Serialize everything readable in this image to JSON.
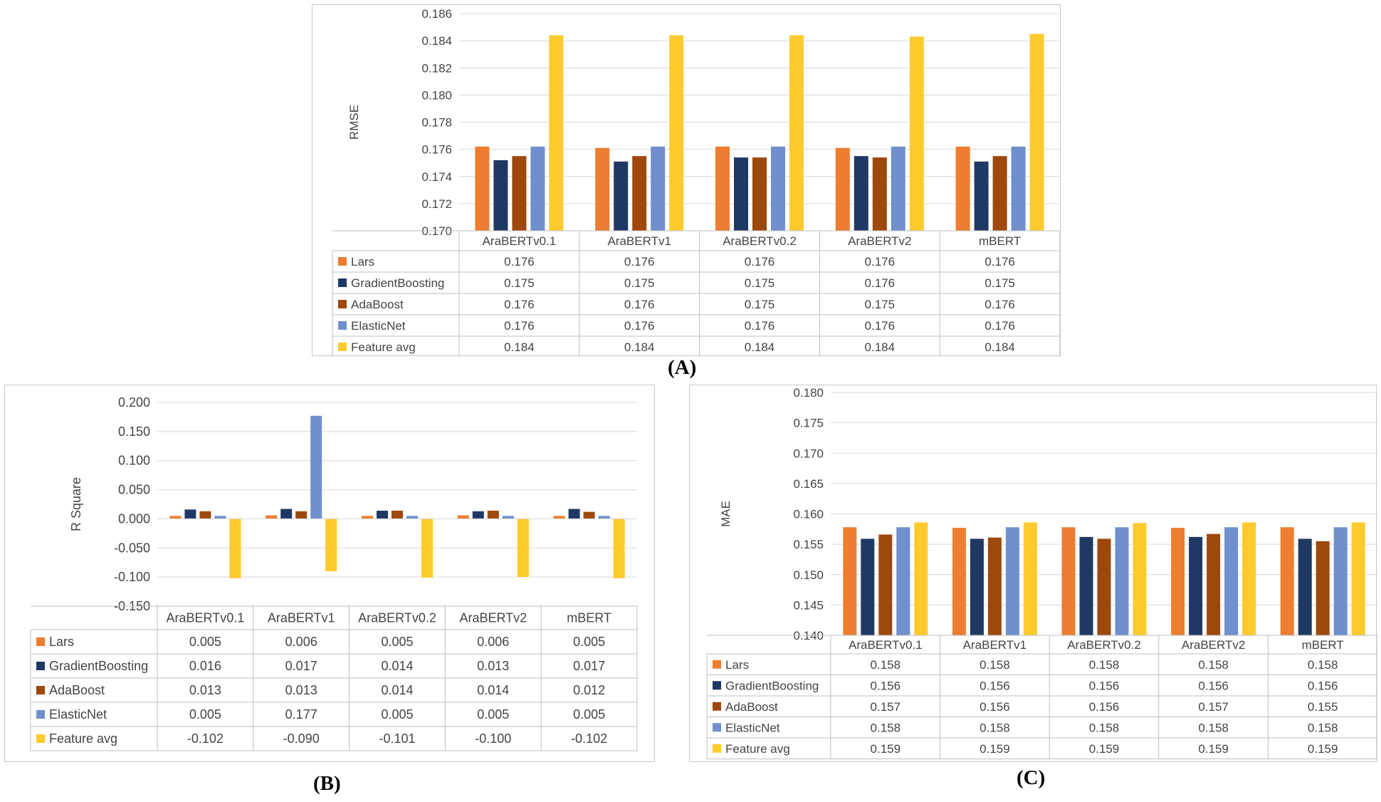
{
  "colors": {
    "Lars": "#ED7D31",
    "GradientBoosting": "#203864",
    "AdaBoost": "#9E480E",
    "ElasticNet": "#6F8FCD",
    "Feature avg": "#FFCA2E"
  },
  "captions": {
    "A": "(A)",
    "B": "(B)",
    "C": "(C)"
  },
  "chart_data": [
    {
      "id": "A",
      "type": "bar",
      "ylabel": "RMSE",
      "ylim": [
        0.17,
        0.186
      ],
      "yticks": [
        "0.186",
        "0.184",
        "0.182",
        "0.180",
        "0.178",
        "0.176",
        "0.174",
        "0.172",
        "0.170"
      ],
      "categories": [
        "AraBERTv0.1",
        "AraBERTv1",
        "AraBERTv0.2",
        "AraBERTv2",
        "mBERT"
      ],
      "series": [
        {
          "name": "Lars",
          "values": [
            0.1762,
            0.1761,
            0.1762,
            0.1761,
            0.1762
          ],
          "labels": [
            "0.176",
            "0.176",
            "0.176",
            "0.176",
            "0.176"
          ]
        },
        {
          "name": "GradientBoosting",
          "values": [
            0.1752,
            0.1751,
            0.1754,
            0.1755,
            0.1751
          ],
          "labels": [
            "0.175",
            "0.175",
            "0.175",
            "0.176",
            "0.175"
          ]
        },
        {
          "name": "AdaBoost",
          "values": [
            0.1755,
            0.1755,
            0.1754,
            0.1754,
            0.1755
          ],
          "labels": [
            "0.176",
            "0.176",
            "0.175",
            "0.175",
            "0.176"
          ]
        },
        {
          "name": "ElasticNet",
          "values": [
            0.1762,
            0.1762,
            0.1762,
            0.1762,
            0.1762
          ],
          "labels": [
            "0.176",
            "0.176",
            "0.176",
            "0.176",
            "0.176"
          ]
        },
        {
          "name": "Feature avg",
          "values": [
            0.1844,
            0.1844,
            0.1844,
            0.1843,
            0.1845
          ],
          "labels": [
            "0.184",
            "0.184",
            "0.184",
            "0.184",
            "0.184"
          ]
        }
      ]
    },
    {
      "id": "B",
      "type": "bar",
      "ylabel": "R Square",
      "ylim": [
        -0.15,
        0.2
      ],
      "yticks": [
        "0.200",
        "0.150",
        "0.100",
        "0.050",
        "0.000",
        "-0.050",
        "-0.100",
        "-0.150"
      ],
      "categories": [
        "AraBERTv0.1",
        "AraBERTv1",
        "AraBERTv0.2",
        "AraBERTv2",
        "mBERT"
      ],
      "series": [
        {
          "name": "Lars",
          "values": [
            0.005,
            0.006,
            0.005,
            0.006,
            0.005
          ],
          "labels": [
            "0.005",
            "0.006",
            "0.005",
            "0.006",
            "0.005"
          ]
        },
        {
          "name": "GradientBoosting",
          "values": [
            0.016,
            0.017,
            0.014,
            0.013,
            0.017
          ],
          "labels": [
            "0.016",
            "0.017",
            "0.014",
            "0.013",
            "0.017"
          ]
        },
        {
          "name": "AdaBoost",
          "values": [
            0.013,
            0.013,
            0.014,
            0.014,
            0.012
          ],
          "labels": [
            "0.013",
            "0.013",
            "0.014",
            "0.014",
            "0.012"
          ]
        },
        {
          "name": "ElasticNet",
          "values": [
            0.005,
            0.177,
            0.005,
            0.005,
            0.005
          ],
          "labels": [
            "0.005",
            "0.177",
            "0.005",
            "0.005",
            "0.005"
          ]
        },
        {
          "name": "Feature avg",
          "values": [
            -0.102,
            -0.09,
            -0.101,
            -0.1,
            -0.102
          ],
          "labels": [
            "-0.102",
            "-0.090",
            "-0.101",
            "-0.100",
            "-0.102"
          ]
        }
      ]
    },
    {
      "id": "C",
      "type": "bar",
      "ylabel": "MAE",
      "ylim": [
        0.14,
        0.18
      ],
      "yticks": [
        "0.180",
        "0.175",
        "0.170",
        "0.165",
        "0.160",
        "0.155",
        "0.150",
        "0.145",
        "0.140"
      ],
      "categories": [
        "AraBERTv0.1",
        "AraBERTv1",
        "AraBERTv0.2",
        "AraBERTv2",
        "mBERT"
      ],
      "series": [
        {
          "name": "Lars",
          "values": [
            0.1578,
            0.1577,
            0.1578,
            0.1577,
            0.1578
          ],
          "labels": [
            "0.158",
            "0.158",
            "0.158",
            "0.158",
            "0.158"
          ]
        },
        {
          "name": "GradientBoosting",
          "values": [
            0.1559,
            0.1559,
            0.1562,
            0.1562,
            0.1559
          ],
          "labels": [
            "0.156",
            "0.156",
            "0.156",
            "0.156",
            "0.156"
          ]
        },
        {
          "name": "AdaBoost",
          "values": [
            0.1566,
            0.1561,
            0.1559,
            0.1567,
            0.1555
          ],
          "labels": [
            "0.157",
            "0.156",
            "0.156",
            "0.157",
            "0.155"
          ]
        },
        {
          "name": "ElasticNet",
          "values": [
            0.1578,
            0.1578,
            0.1578,
            0.1578,
            0.1578
          ],
          "labels": [
            "0.158",
            "0.158",
            "0.158",
            "0.158",
            "0.158"
          ]
        },
        {
          "name": "Feature avg",
          "values": [
            0.1586,
            0.1586,
            0.1585,
            0.1586,
            0.1586
          ],
          "labels": [
            "0.159",
            "0.159",
            "0.159",
            "0.159",
            "0.159"
          ]
        }
      ]
    }
  ]
}
